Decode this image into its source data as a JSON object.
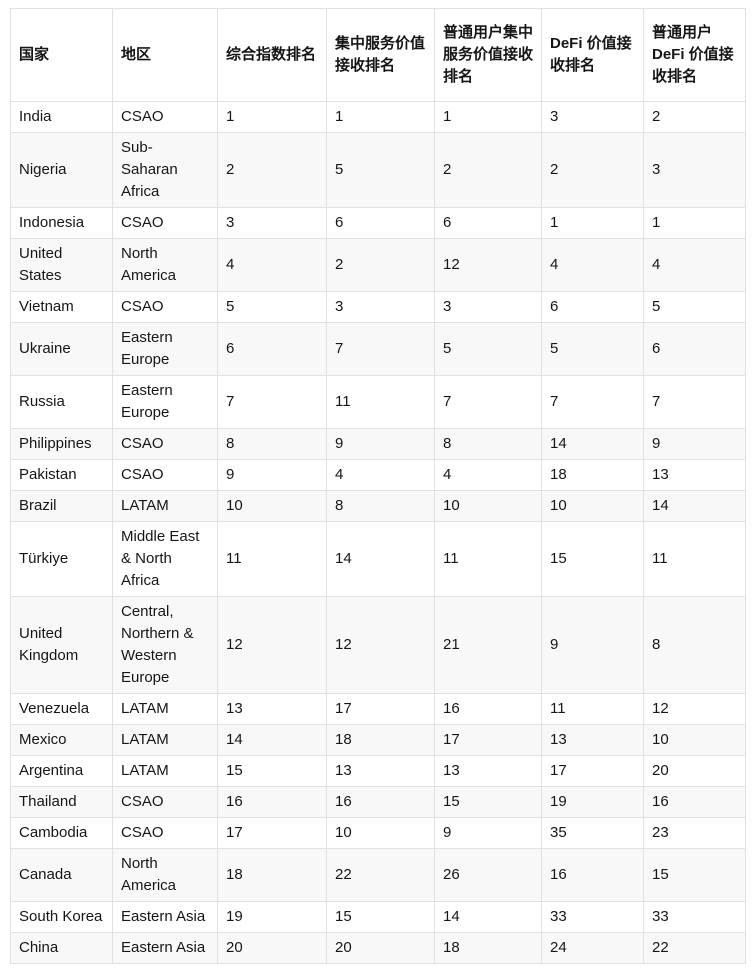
{
  "colors": {
    "border": "#e1e1e1",
    "stripe": "#f8f8f8",
    "text": "#161616",
    "background": "#ffffff"
  },
  "chart_data": {
    "type": "table",
    "columns": [
      "国家",
      "地区",
      "综合指数排名",
      "集中服务价值接收排名",
      "普通用户集中服务价值接收排名",
      "DeFi 价值接收排名",
      "普通用户 DeFi 价值接收排名"
    ],
    "rows": [
      [
        "India",
        "CSAO",
        "1",
        "1",
        "1",
        "3",
        "2"
      ],
      [
        "Nigeria",
        "Sub-Saharan Africa",
        "2",
        "5",
        "2",
        "2",
        "3"
      ],
      [
        "Indonesia",
        "CSAO",
        "3",
        "6",
        "6",
        "1",
        "1"
      ],
      [
        "United States",
        "North America",
        "4",
        "2",
        "12",
        "4",
        "4"
      ],
      [
        "Vietnam",
        "CSAO",
        "5",
        "3",
        "3",
        "6",
        "5"
      ],
      [
        "Ukraine",
        "Eastern Europe",
        "6",
        "7",
        "5",
        "5",
        "6"
      ],
      [
        "Russia",
        "Eastern Europe",
        "7",
        "11",
        "7",
        "7",
        "7"
      ],
      [
        "Philippines",
        "CSAO",
        "8",
        "9",
        "8",
        "14",
        "9"
      ],
      [
        "Pakistan",
        "CSAO",
        "9",
        "4",
        "4",
        "18",
        "13"
      ],
      [
        "Brazil",
        "LATAM",
        "10",
        "8",
        "10",
        "10",
        "14"
      ],
      [
        "Türkiye",
        "Middle East & North Africa",
        "11",
        "14",
        "11",
        "15",
        "11"
      ],
      [
        "United Kingdom",
        "Central, Northern & Western Europe",
        "12",
        "12",
        "21",
        "9",
        "8"
      ],
      [
        "Venezuela",
        "LATAM",
        "13",
        "17",
        "16",
        "11",
        "12"
      ],
      [
        "Mexico",
        "LATAM",
        "14",
        "18",
        "17",
        "13",
        "10"
      ],
      [
        "Argentina",
        "LATAM",
        "15",
        "13",
        "13",
        "17",
        "20"
      ],
      [
        "Thailand",
        "CSAO",
        "16",
        "16",
        "15",
        "19",
        "16"
      ],
      [
        "Cambodia",
        "CSAO",
        "17",
        "10",
        "9",
        "35",
        "23"
      ],
      [
        "Canada",
        "North America",
        "18",
        "22",
        "26",
        "16",
        "15"
      ],
      [
        "South Korea",
        "Eastern Asia",
        "19",
        "15",
        "14",
        "33",
        "33"
      ],
      [
        "China",
        "Eastern Asia",
        "20",
        "20",
        "18",
        "24",
        "22"
      ]
    ]
  }
}
